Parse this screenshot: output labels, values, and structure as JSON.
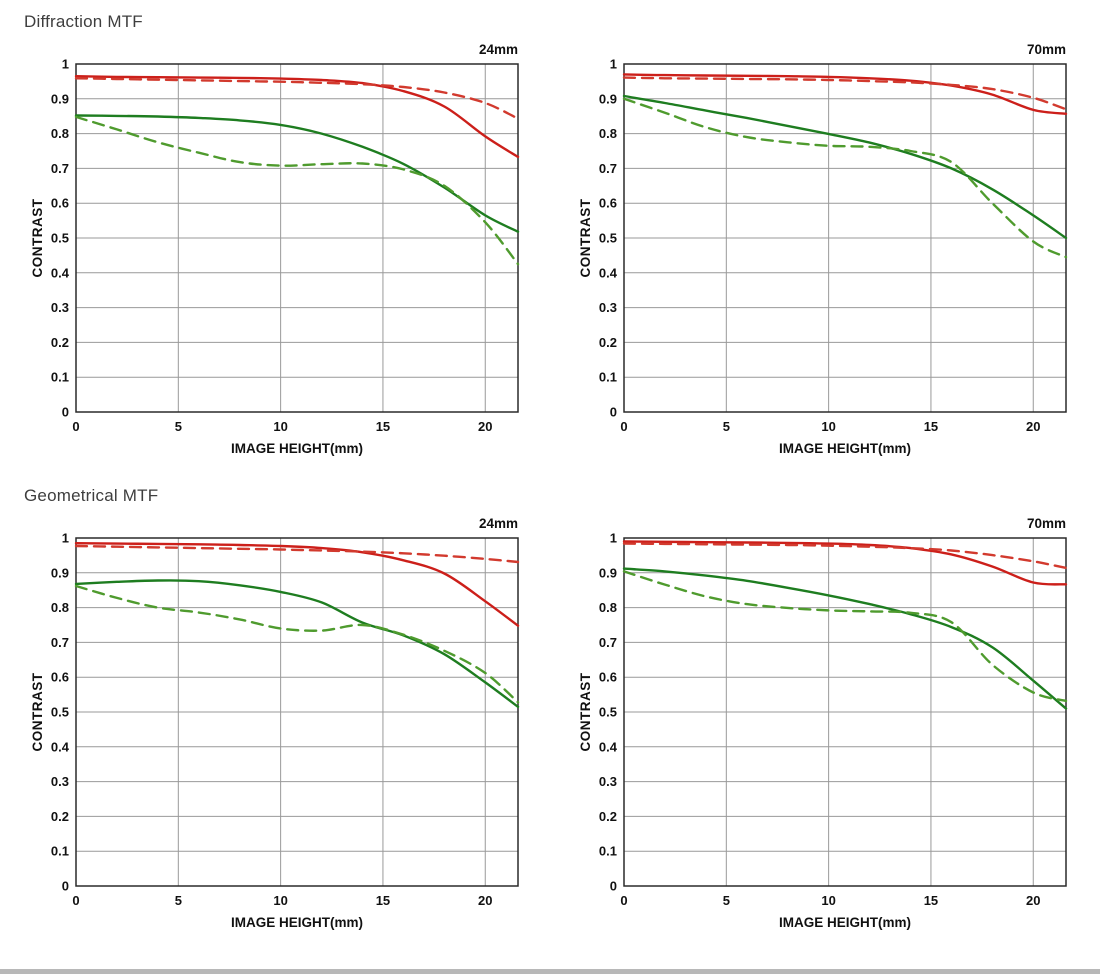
{
  "page": {
    "background": "#ffffff"
  },
  "sections": [
    {
      "title": "Diffraction MTF"
    },
    {
      "title": "Geometrical MTF"
    }
  ],
  "style": {
    "grid_color": "#999999",
    "border_color": "#2a2a2a",
    "red": "#cc1f1a",
    "red_dashed": "#d23a2e",
    "green": "#1e7d20",
    "green_dashed": "#4f9b2e",
    "label_color": "#111111",
    "title_color": "#3e3e3e"
  },
  "chart_data": [
    {
      "type": "line",
      "section": "Diffraction MTF",
      "panel_label": "24mm",
      "xlabel": "IMAGE HEIGHT(mm)",
      "ylabel": "CONTRAST",
      "xlim": [
        0,
        21.6
      ],
      "ylim": [
        0,
        1
      ],
      "grid": true,
      "x_ticks": [
        0,
        5,
        10,
        15,
        20
      ],
      "x_tick_labels": [
        "0",
        "5",
        "10",
        "15",
        "20"
      ],
      "y_ticks": [
        0,
        0.1,
        0.2,
        0.3,
        0.4,
        0.5,
        0.6,
        0.7,
        0.8,
        0.9,
        1
      ],
      "y_tick_labels": [
        "0",
        "0.1",
        "0.2",
        "0.3",
        "0.4",
        "0.5",
        "0.6",
        "0.7",
        "0.8",
        "0.9",
        "1"
      ],
      "style": {
        "grid_color": "#999999",
        "border_color": "#2a2a2a"
      },
      "x": [
        0,
        2,
        4,
        6,
        8,
        10,
        12,
        14,
        16,
        18,
        20,
        21.6
      ],
      "series": [
        {
          "name": "red-solid",
          "style": "solid",
          "color": "#cc1f1a",
          "values": [
            0.965,
            0.963,
            0.962,
            0.961,
            0.96,
            0.958,
            0.954,
            0.945,
            0.922,
            0.878,
            0.792,
            0.733
          ]
        },
        {
          "name": "red-dashed",
          "style": "dashed",
          "color": "#d23a2e",
          "values": [
            0.959,
            0.957,
            0.955,
            0.953,
            0.951,
            0.949,
            0.946,
            0.942,
            0.934,
            0.918,
            0.888,
            0.843
          ]
        },
        {
          "name": "green-solid",
          "style": "solid",
          "color": "#1e7d20",
          "values": [
            0.852,
            0.851,
            0.849,
            0.845,
            0.838,
            0.825,
            0.8,
            0.762,
            0.713,
            0.645,
            0.565,
            0.518
          ]
        },
        {
          "name": "green-dashed",
          "style": "dashed",
          "color": "#4f9b2e",
          "values": [
            0.848,
            0.812,
            0.775,
            0.745,
            0.718,
            0.708,
            0.712,
            0.714,
            0.697,
            0.65,
            0.545,
            0.425
          ]
        }
      ]
    },
    {
      "type": "line",
      "section": "Diffraction MTF",
      "panel_label": "70mm",
      "xlabel": "IMAGE HEIGHT(mm)",
      "ylabel": "CONTRAST",
      "xlim": [
        0,
        21.6
      ],
      "ylim": [
        0,
        1
      ],
      "grid": true,
      "x_ticks": [
        0,
        5,
        10,
        15,
        20
      ],
      "x_tick_labels": [
        "0",
        "5",
        "10",
        "15",
        "20"
      ],
      "y_ticks": [
        0,
        0.1,
        0.2,
        0.3,
        0.4,
        0.5,
        0.6,
        0.7,
        0.8,
        0.9,
        1
      ],
      "y_tick_labels": [
        "0",
        "0.1",
        "0.2",
        "0.3",
        "0.4",
        "0.5",
        "0.6",
        "0.7",
        "0.8",
        "0.9",
        "1"
      ],
      "style": {
        "grid_color": "#999999",
        "border_color": "#2a2a2a"
      },
      "x": [
        0,
        2,
        4,
        6,
        8,
        10,
        12,
        14,
        16,
        18,
        20,
        21.6
      ],
      "series": [
        {
          "name": "red-solid",
          "style": "solid",
          "color": "#cc1f1a",
          "values": [
            0.97,
            0.968,
            0.967,
            0.966,
            0.965,
            0.963,
            0.959,
            0.952,
            0.938,
            0.912,
            0.868,
            0.857
          ]
        },
        {
          "name": "red-dashed",
          "style": "dashed",
          "color": "#d23a2e",
          "values": [
            0.961,
            0.959,
            0.958,
            0.957,
            0.956,
            0.954,
            0.951,
            0.947,
            0.94,
            0.928,
            0.903,
            0.87
          ]
        },
        {
          "name": "green-solid",
          "style": "solid",
          "color": "#1e7d20",
          "values": [
            0.908,
            0.888,
            0.866,
            0.845,
            0.822,
            0.799,
            0.774,
            0.742,
            0.7,
            0.64,
            0.565,
            0.5
          ]
        },
        {
          "name": "green-dashed",
          "style": "dashed",
          "color": "#4f9b2e",
          "values": [
            0.9,
            0.86,
            0.818,
            0.79,
            0.775,
            0.765,
            0.762,
            0.75,
            0.718,
            0.6,
            0.49,
            0.445
          ]
        }
      ]
    },
    {
      "type": "line",
      "section": "Geometrical MTF",
      "panel_label": "24mm",
      "xlabel": "IMAGE HEIGHT(mm)",
      "ylabel": "CONTRAST",
      "xlim": [
        0,
        21.6
      ],
      "ylim": [
        0,
        1
      ],
      "grid": true,
      "x_ticks": [
        0,
        5,
        10,
        15,
        20
      ],
      "x_tick_labels": [
        "0",
        "5",
        "10",
        "15",
        "20"
      ],
      "y_ticks": [
        0,
        0.1,
        0.2,
        0.3,
        0.4,
        0.5,
        0.6,
        0.7,
        0.8,
        0.9,
        1
      ],
      "y_tick_labels": [
        "0",
        "0.1",
        "0.2",
        "0.3",
        "0.4",
        "0.5",
        "0.6",
        "0.7",
        "0.8",
        "0.9",
        "1"
      ],
      "style": {
        "grid_color": "#999999",
        "border_color": "#2a2a2a"
      },
      "x": [
        0,
        2,
        4,
        6,
        8,
        10,
        12,
        14,
        16,
        18,
        20,
        21.6
      ],
      "series": [
        {
          "name": "red-solid",
          "style": "solid",
          "color": "#cc1f1a",
          "values": [
            0.985,
            0.984,
            0.983,
            0.982,
            0.98,
            0.977,
            0.971,
            0.959,
            0.936,
            0.898,
            0.818,
            0.748
          ]
        },
        {
          "name": "red-dashed",
          "style": "dashed",
          "color": "#d23a2e",
          "values": [
            0.977,
            0.975,
            0.973,
            0.971,
            0.969,
            0.967,
            0.964,
            0.961,
            0.956,
            0.949,
            0.94,
            0.931
          ]
        },
        {
          "name": "green-solid",
          "style": "solid",
          "color": "#1e7d20",
          "values": [
            0.868,
            0.874,
            0.878,
            0.876,
            0.864,
            0.845,
            0.815,
            0.757,
            0.72,
            0.666,
            0.585,
            0.515
          ]
        },
        {
          "name": "green-dashed",
          "style": "dashed",
          "color": "#4f9b2e",
          "values": [
            0.862,
            0.828,
            0.8,
            0.786,
            0.766,
            0.74,
            0.734,
            0.75,
            0.722,
            0.676,
            0.612,
            0.528
          ]
        }
      ]
    },
    {
      "type": "line",
      "section": "Geometrical MTF",
      "panel_label": "70mm",
      "xlabel": "IMAGE HEIGHT(mm)",
      "ylabel": "CONTRAST",
      "xlim": [
        0,
        21.6
      ],
      "ylim": [
        0,
        1
      ],
      "grid": true,
      "x_ticks": [
        0,
        5,
        10,
        15,
        20
      ],
      "x_tick_labels": [
        "0",
        "5",
        "10",
        "15",
        "20"
      ],
      "y_ticks": [
        0,
        0.1,
        0.2,
        0.3,
        0.4,
        0.5,
        0.6,
        0.7,
        0.8,
        0.9,
        1
      ],
      "y_tick_labels": [
        "0",
        "0.1",
        "0.2",
        "0.3",
        "0.4",
        "0.5",
        "0.6",
        "0.7",
        "0.8",
        "0.9",
        "1"
      ],
      "style": {
        "grid_color": "#999999",
        "border_color": "#2a2a2a"
      },
      "x": [
        0,
        2,
        4,
        6,
        8,
        10,
        12,
        14,
        16,
        18,
        20,
        21.6
      ],
      "series": [
        {
          "name": "red-solid",
          "style": "solid",
          "color": "#cc1f1a",
          "values": [
            0.99,
            0.989,
            0.988,
            0.987,
            0.986,
            0.984,
            0.98,
            0.971,
            0.953,
            0.918,
            0.872,
            0.867
          ]
        },
        {
          "name": "red-dashed",
          "style": "dashed",
          "color": "#d23a2e",
          "values": [
            0.984,
            0.983,
            0.982,
            0.981,
            0.98,
            0.978,
            0.975,
            0.971,
            0.964,
            0.951,
            0.933,
            0.914
          ]
        },
        {
          "name": "green-solid",
          "style": "solid",
          "color": "#1e7d20",
          "values": [
            0.912,
            0.904,
            0.892,
            0.877,
            0.857,
            0.835,
            0.81,
            0.781,
            0.744,
            0.686,
            0.59,
            0.51
          ]
        },
        {
          "name": "green-dashed",
          "style": "dashed",
          "color": "#4f9b2e",
          "values": [
            0.904,
            0.866,
            0.832,
            0.81,
            0.799,
            0.792,
            0.789,
            0.785,
            0.758,
            0.636,
            0.556,
            0.532
          ]
        }
      ]
    }
  ]
}
